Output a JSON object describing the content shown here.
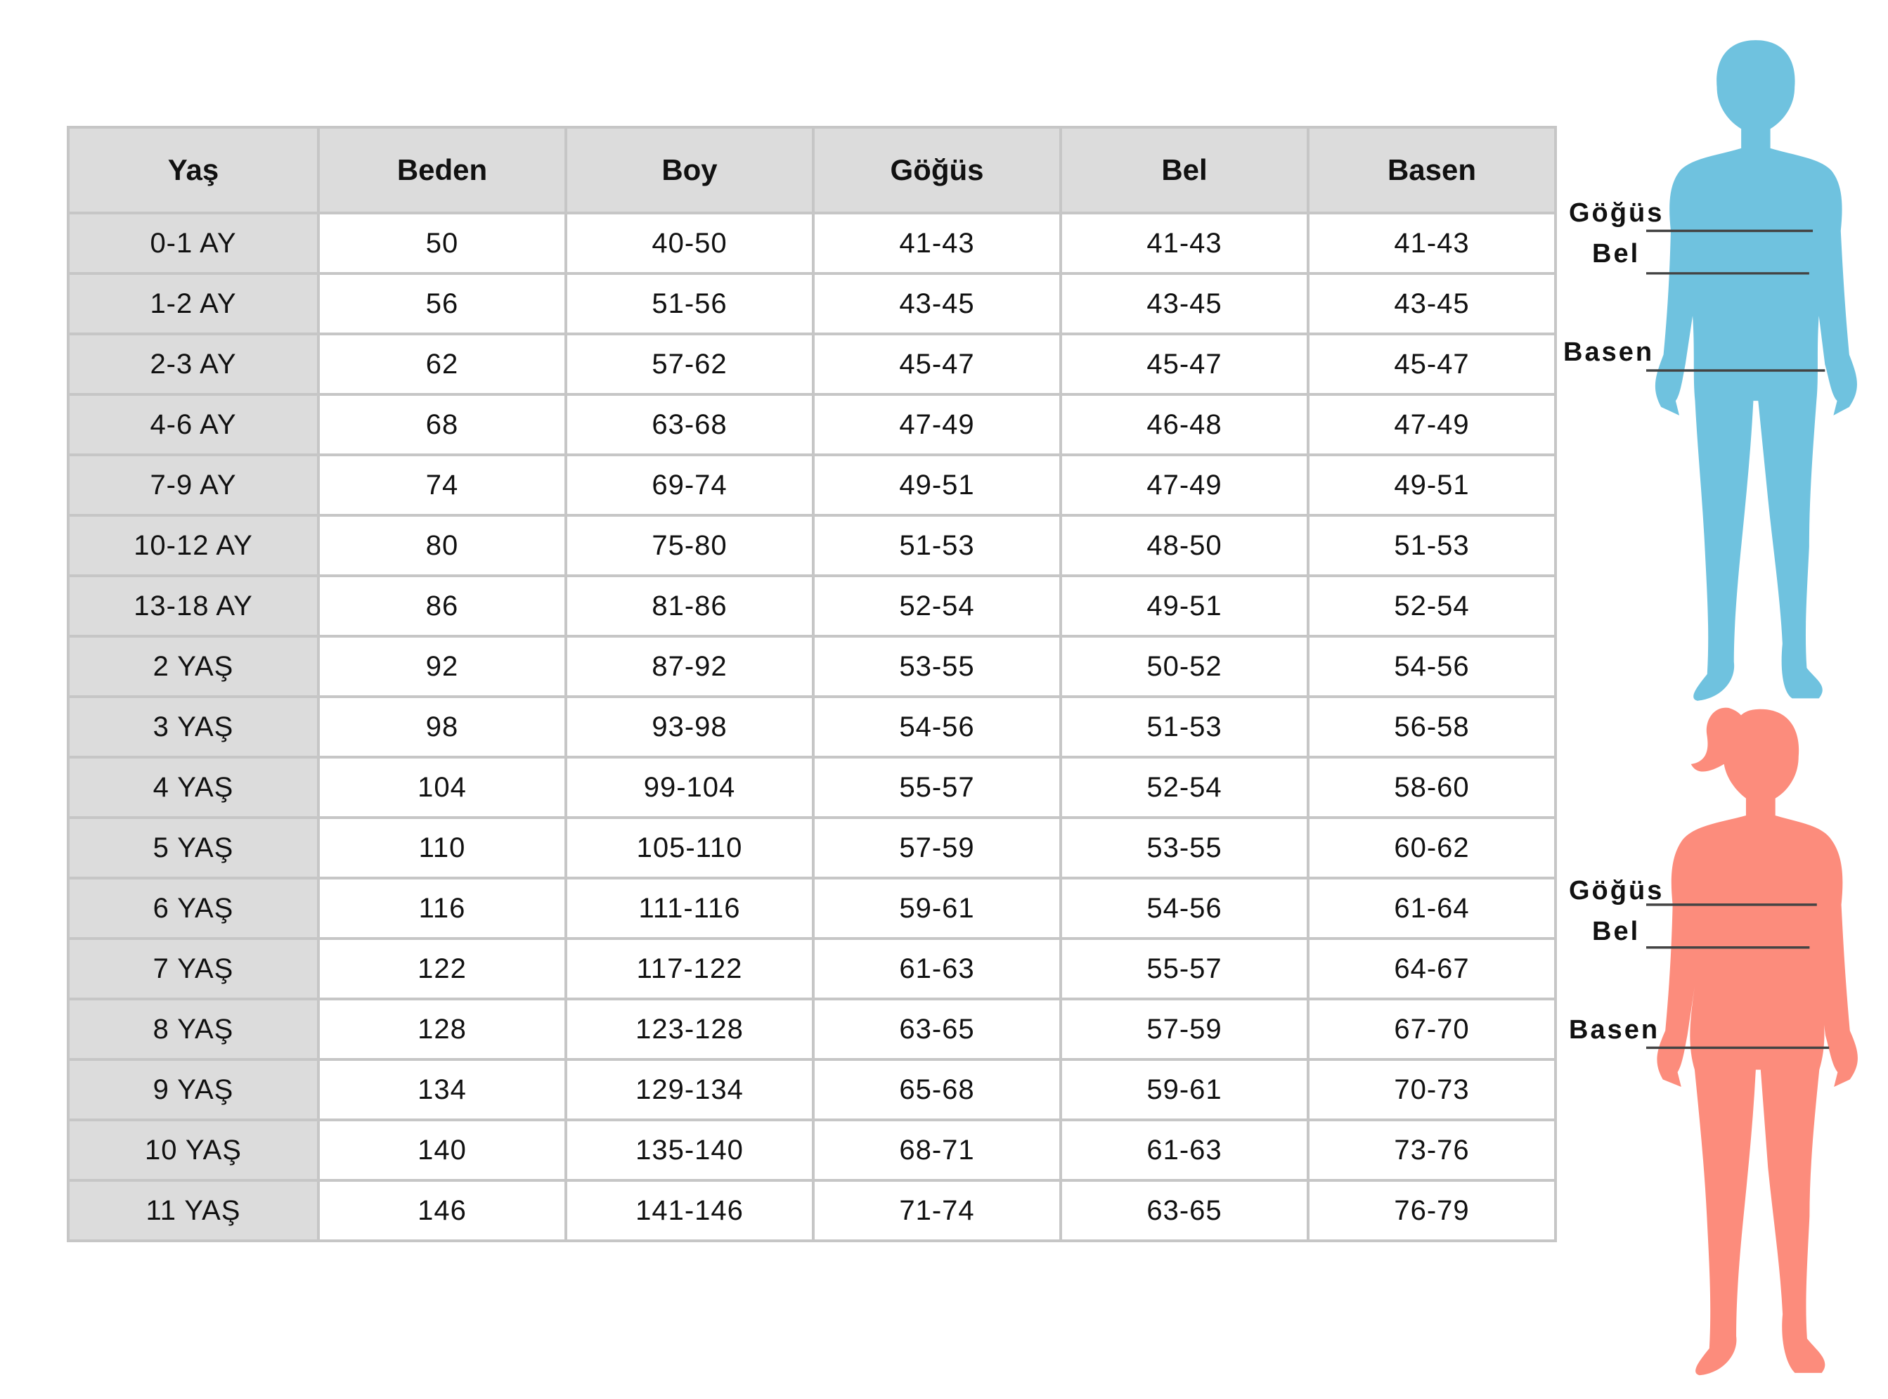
{
  "table": {
    "headers": [
      "Yaş",
      "Beden",
      "Boy",
      "Göğüs",
      "Bel",
      "Basen"
    ],
    "rows": [
      [
        "0-1 AY",
        "50",
        "40-50",
        "41-43",
        "41-43",
        "41-43"
      ],
      [
        "1-2 AY",
        "56",
        "51-56",
        "43-45",
        "43-45",
        "43-45"
      ],
      [
        "2-3 AY",
        "62",
        "57-62",
        "45-47",
        "45-47",
        "45-47"
      ],
      [
        "4-6 AY",
        "68",
        "63-68",
        "47-49",
        "46-48",
        "47-49"
      ],
      [
        "7-9 AY",
        "74",
        "69-74",
        "49-51",
        "47-49",
        "49-51"
      ],
      [
        "10-12 AY",
        "80",
        "75-80",
        "51-53",
        "48-50",
        "51-53"
      ],
      [
        "13-18 AY",
        "86",
        "81-86",
        "52-54",
        "49-51",
        "52-54"
      ],
      [
        "2 YAŞ",
        "92",
        "87-92",
        "53-55",
        "50-52",
        "54-56"
      ],
      [
        "3 YAŞ",
        "98",
        "93-98",
        "54-56",
        "51-53",
        "56-58"
      ],
      [
        "4 YAŞ",
        "104",
        "99-104",
        "55-57",
        "52-54",
        "58-60"
      ],
      [
        "5 YAŞ",
        "110",
        "105-110",
        "57-59",
        "53-55",
        "60-62"
      ],
      [
        "6 YAŞ",
        "116",
        "111-116",
        "59-61",
        "54-56",
        "61-64"
      ],
      [
        "7 YAŞ",
        "122",
        "117-122",
        "61-63",
        "55-57",
        "64-67"
      ],
      [
        "8 YAŞ",
        "128",
        "123-128",
        "63-65",
        "57-59",
        "67-70"
      ],
      [
        "9 YAŞ",
        "134",
        "129-134",
        "65-68",
        "59-61",
        "70-73"
      ],
      [
        "10 YAŞ",
        "140",
        "135-140",
        "68-71",
        "61-63",
        "73-76"
      ],
      [
        "11 YAŞ",
        "146",
        "141-146",
        "71-74",
        "63-65",
        "76-79"
      ]
    ]
  },
  "figures": {
    "boy": {
      "color": "#6fc2df",
      "labels": {
        "chest": "Göğüs",
        "waist": "Bel",
        "hip": "Basen"
      }
    },
    "girl": {
      "color": "#fc8c7c",
      "labels": {
        "chest": "Göğüs",
        "waist": "Bel",
        "hip": "Basen"
      }
    }
  }
}
